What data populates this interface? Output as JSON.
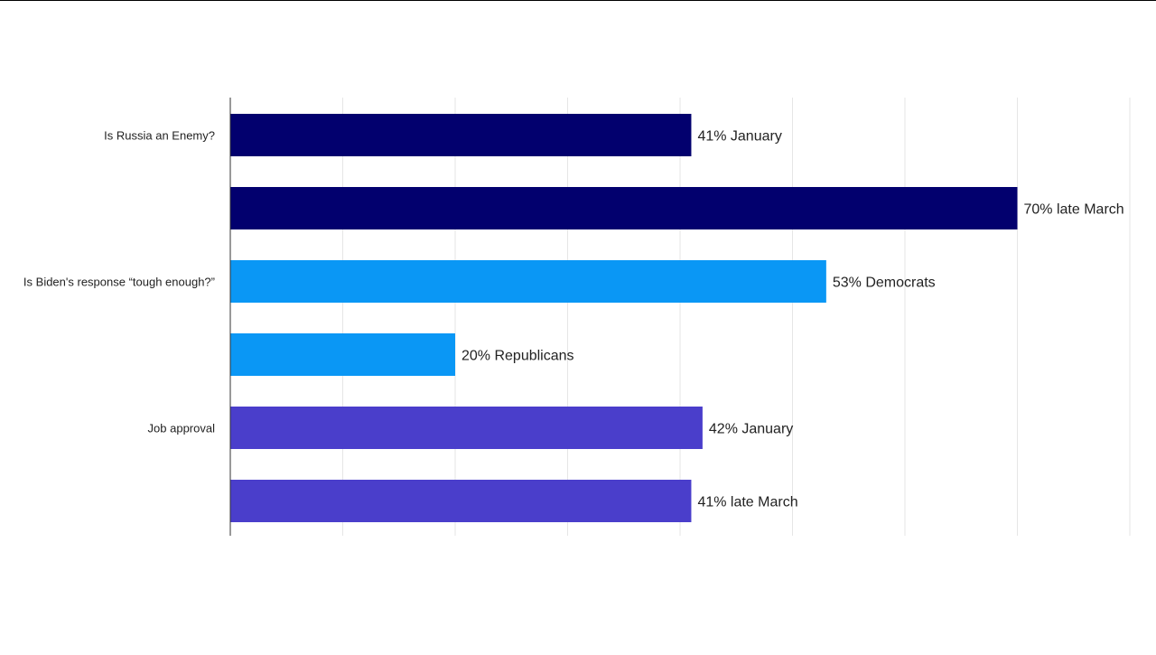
{
  "chart_data": {
    "type": "bar",
    "orientation": "horizontal",
    "xlim": [
      0,
      80
    ],
    "grid": true,
    "categories": [
      "Is Russia an Enemy?",
      "Is Biden's response “tough enough?”",
      "Job approval"
    ],
    "bars": [
      {
        "category_index": 0,
        "value": 41,
        "label": "41% January",
        "color": "#02006E"
      },
      {
        "category_index": 0,
        "value": 70,
        "label": "70% late March",
        "color": "#02006E"
      },
      {
        "category_index": 1,
        "value": 53,
        "label": "53% Democrats",
        "color": "#0A97F5"
      },
      {
        "category_index": 1,
        "value": 20,
        "label": "20% Republicans",
        "color": "#0A97F5"
      },
      {
        "category_index": 2,
        "value": 42,
        "label": "42% January",
        "color": "#4A3ECB"
      },
      {
        "category_index": 2,
        "value": 41,
        "label": "41% late March",
        "color": "#4A3ECB"
      }
    ]
  },
  "colors": {
    "gridline": "#E6E6E6",
    "axis": "#333333"
  }
}
